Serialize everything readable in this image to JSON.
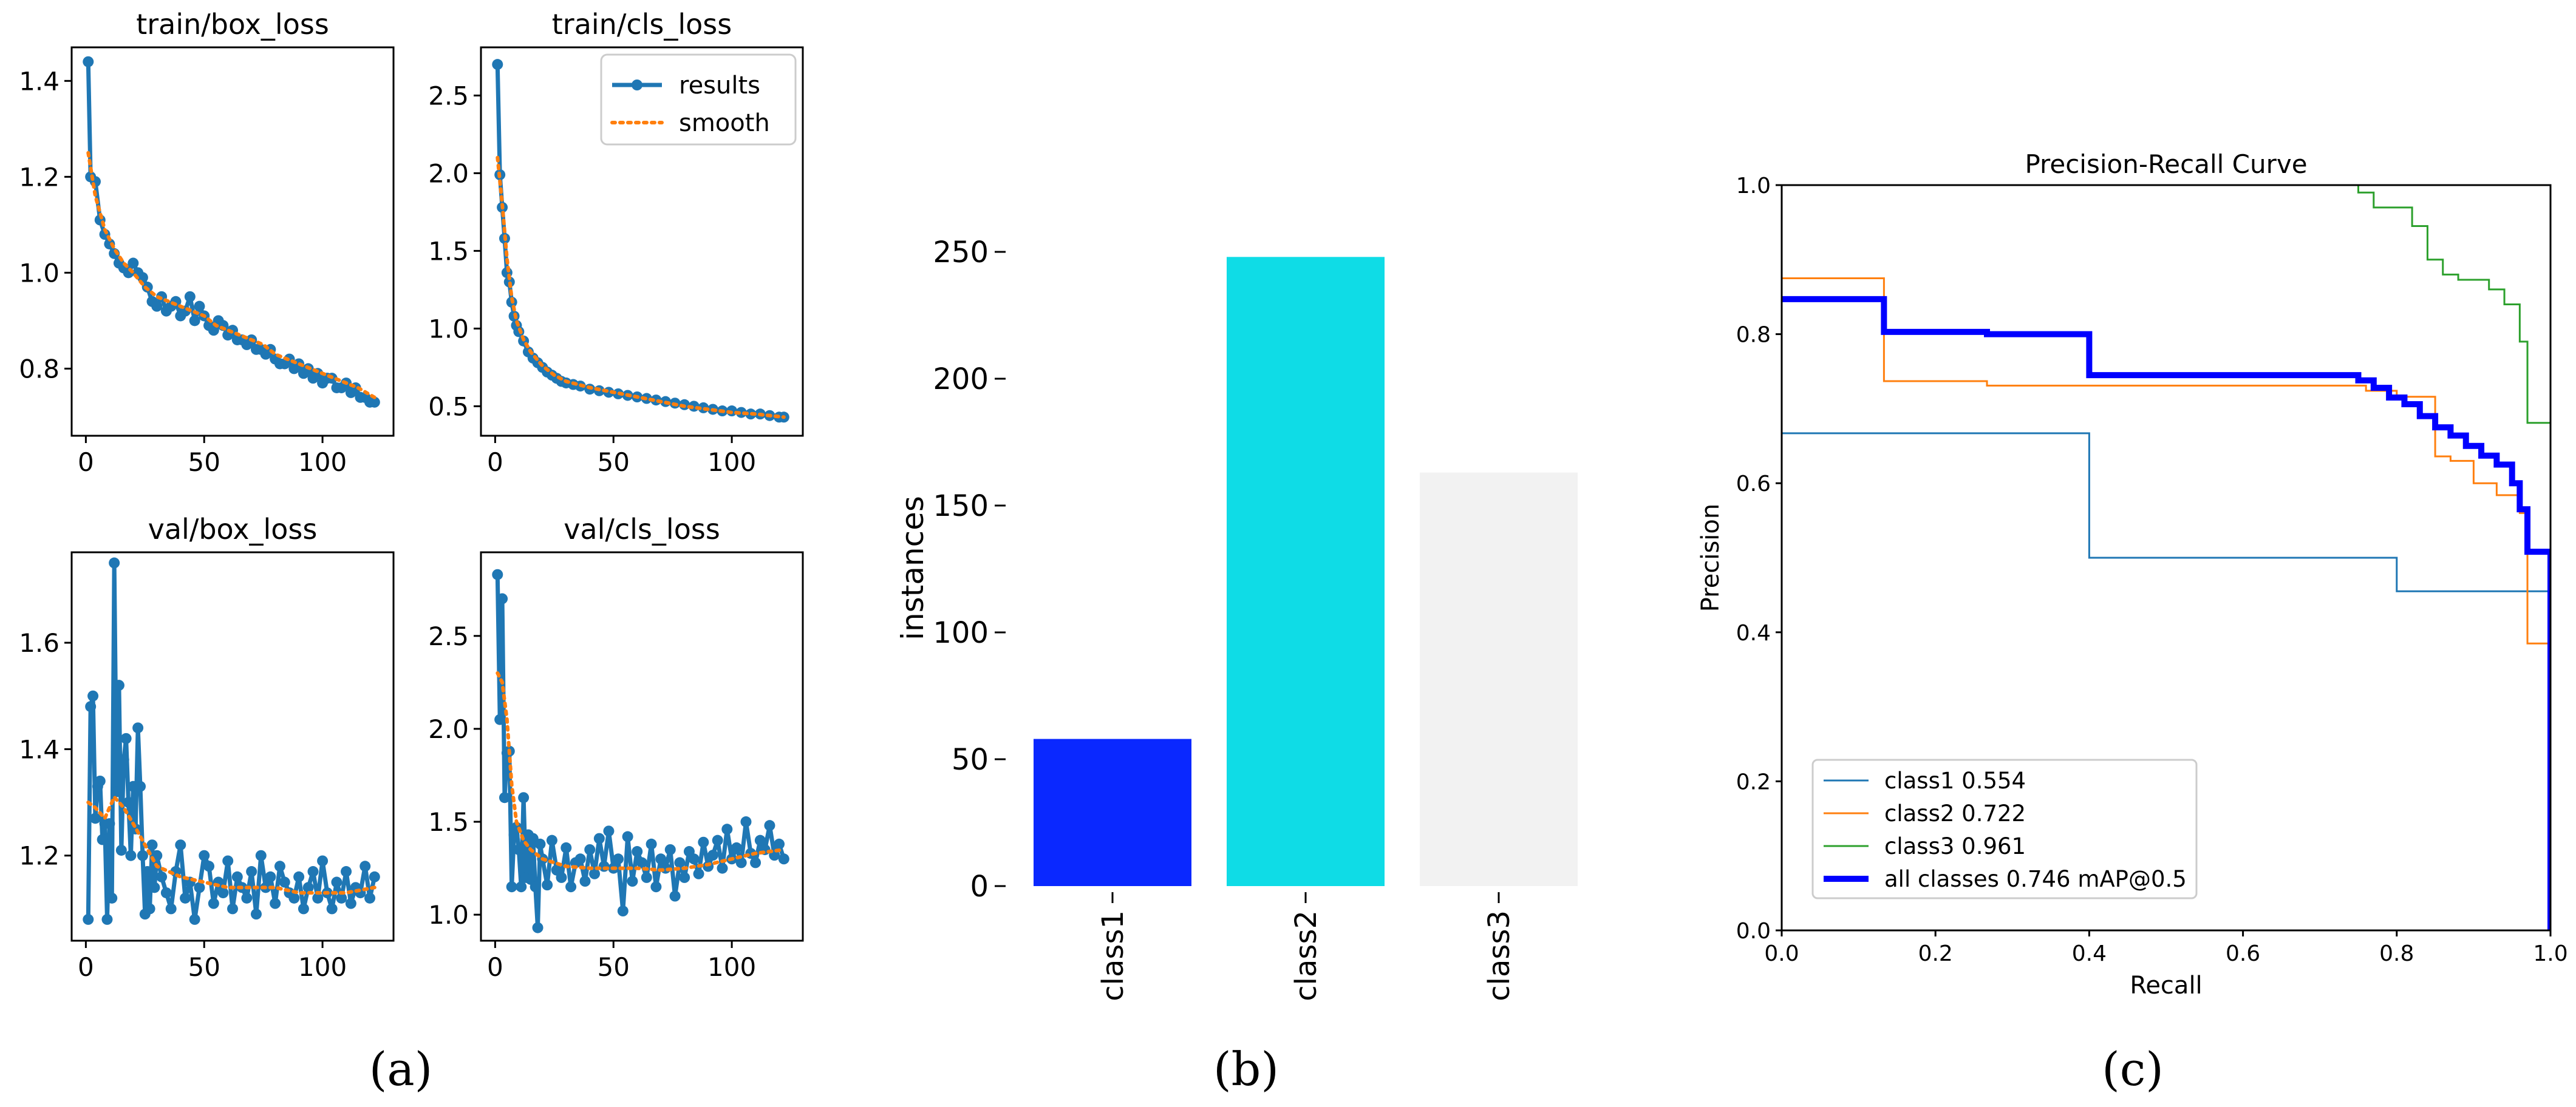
{
  "colors": {
    "results": "#1f77b4",
    "smooth": "#ff7f0e",
    "class1_pr": "#1f77b4",
    "class2_pr": "#ff7f0e",
    "class3_pr": "#2ca02c",
    "all_pr": "#0000ff",
    "bar_class1": "#0a28ff",
    "bar_class2": "#0fdce6",
    "bar_class3": "#f2f2f2"
  },
  "panel_labels": {
    "a": "(a)",
    "b": "(b)",
    "c": "(c)"
  },
  "chart_data": [
    {
      "id": "train_box",
      "type": "line",
      "title": "train/box_loss",
      "xlim": [
        -6,
        130
      ],
      "ylim": [
        0.66,
        1.47
      ],
      "xticks": [
        0,
        50,
        100
      ],
      "yticks": [
        0.8,
        1.0,
        1.2,
        1.4
      ],
      "yfmt": 1,
      "legend": null,
      "series": [
        {
          "name": "results",
          "kind": "results",
          "x": [
            1,
            2,
            4,
            6,
            8,
            10,
            12,
            14,
            16,
            18,
            20,
            22,
            24,
            26,
            28,
            30,
            32,
            34,
            36,
            38,
            40,
            42,
            44,
            46,
            48,
            50,
            52,
            54,
            56,
            58,
            60,
            62,
            64,
            66,
            68,
            70,
            72,
            74,
            76,
            78,
            80,
            82,
            84,
            86,
            88,
            90,
            92,
            94,
            96,
            98,
            100,
            102,
            104,
            106,
            108,
            110,
            112,
            114,
            116,
            118,
            120,
            122
          ],
          "y": [
            1.44,
            1.2,
            1.19,
            1.11,
            1.08,
            1.06,
            1.04,
            1.02,
            1.01,
            1.0,
            1.02,
            1.0,
            0.99,
            0.97,
            0.94,
            0.93,
            0.95,
            0.92,
            0.93,
            0.94,
            0.91,
            0.92,
            0.95,
            0.9,
            0.93,
            0.91,
            0.89,
            0.88,
            0.9,
            0.89,
            0.87,
            0.88,
            0.86,
            0.86,
            0.85,
            0.86,
            0.84,
            0.84,
            0.83,
            0.84,
            0.82,
            0.81,
            0.81,
            0.82,
            0.8,
            0.81,
            0.79,
            0.8,
            0.78,
            0.79,
            0.77,
            0.78,
            0.78,
            0.76,
            0.76,
            0.77,
            0.75,
            0.76,
            0.74,
            0.74,
            0.73,
            0.73
          ]
        },
        {
          "name": "smooth",
          "kind": "smooth",
          "x": [
            1,
            4,
            8,
            12,
            16,
            20,
            25,
            30,
            35,
            40,
            45,
            50,
            55,
            60,
            65,
            70,
            75,
            80,
            85,
            90,
            95,
            100,
            105,
            110,
            115,
            122
          ],
          "y": [
            1.25,
            1.16,
            1.09,
            1.05,
            1.02,
            1.0,
            0.97,
            0.95,
            0.94,
            0.93,
            0.92,
            0.91,
            0.89,
            0.88,
            0.87,
            0.86,
            0.85,
            0.83,
            0.82,
            0.81,
            0.8,
            0.79,
            0.78,
            0.77,
            0.76,
            0.74
          ]
        }
      ]
    },
    {
      "id": "train_cls",
      "type": "line",
      "title": "train/cls_loss",
      "xlim": [
        -6,
        130
      ],
      "ylim": [
        0.31,
        2.81
      ],
      "xticks": [
        0,
        50,
        100
      ],
      "yticks": [
        0.5,
        1.0,
        1.5,
        2.0,
        2.5
      ],
      "yfmt": 1,
      "legend": {
        "results_label": "results",
        "smooth_label": "smooth",
        "position": "upper right"
      },
      "series": [
        {
          "name": "results",
          "kind": "results",
          "x": [
            1,
            2,
            3,
            4,
            5,
            6,
            7,
            8,
            9,
            10,
            12,
            14,
            16,
            18,
            20,
            22,
            24,
            26,
            28,
            30,
            33,
            36,
            40,
            44,
            48,
            52,
            56,
            60,
            64,
            68,
            72,
            76,
            80,
            84,
            88,
            92,
            96,
            100,
            104,
            108,
            112,
            116,
            120,
            122
          ],
          "y": [
            2.7,
            1.99,
            1.78,
            1.58,
            1.36,
            1.3,
            1.17,
            1.08,
            1.02,
            0.98,
            0.92,
            0.85,
            0.81,
            0.78,
            0.75,
            0.72,
            0.7,
            0.68,
            0.66,
            0.65,
            0.64,
            0.63,
            0.61,
            0.6,
            0.59,
            0.58,
            0.57,
            0.56,
            0.55,
            0.54,
            0.53,
            0.52,
            0.51,
            0.5,
            0.49,
            0.48,
            0.47,
            0.47,
            0.46,
            0.45,
            0.45,
            0.44,
            0.43,
            0.43
          ]
        },
        {
          "name": "smooth",
          "kind": "smooth",
          "x": [
            1,
            3,
            5,
            7,
            9,
            12,
            15,
            20,
            25,
            30,
            40,
            50,
            60,
            70,
            80,
            90,
            100,
            110,
            122
          ],
          "y": [
            2.1,
            1.8,
            1.45,
            1.2,
            1.05,
            0.93,
            0.85,
            0.76,
            0.7,
            0.66,
            0.62,
            0.59,
            0.56,
            0.53,
            0.5,
            0.48,
            0.46,
            0.45,
            0.43
          ]
        }
      ]
    },
    {
      "id": "val_box",
      "type": "line",
      "title": "val/box_loss",
      "xlim": [
        -6,
        130
      ],
      "ylim": [
        1.04,
        1.77
      ],
      "xticks": [
        0,
        50,
        100
      ],
      "yticks": [
        1.2,
        1.4,
        1.6
      ],
      "yfmt": 1,
      "legend": null,
      "series": [
        {
          "name": "results",
          "kind": "results",
          "x": [
            1,
            2,
            3,
            4,
            5,
            6,
            7,
            8,
            9,
            10,
            11,
            12,
            13,
            14,
            15,
            16,
            17,
            18,
            19,
            20,
            21,
            22,
            23,
            24,
            25,
            26,
            27,
            28,
            29,
            30,
            32,
            34,
            36,
            38,
            40,
            42,
            44,
            46,
            48,
            50,
            52,
            54,
            56,
            58,
            60,
            62,
            64,
            66,
            68,
            70,
            72,
            74,
            76,
            78,
            80,
            82,
            84,
            86,
            88,
            90,
            92,
            94,
            96,
            98,
            100,
            102,
            104,
            106,
            108,
            110,
            112,
            114,
            116,
            118,
            120,
            122
          ],
          "y": [
            1.08,
            1.48,
            1.5,
            1.27,
            1.33,
            1.34,
            1.23,
            1.26,
            1.08,
            1.26,
            1.12,
            1.75,
            1.32,
            1.52,
            1.21,
            1.38,
            1.42,
            1.3,
            1.2,
            1.33,
            1.25,
            1.44,
            1.33,
            1.2,
            1.09,
            1.17,
            1.1,
            1.22,
            1.14,
            1.2,
            1.16,
            1.13,
            1.1,
            1.17,
            1.22,
            1.12,
            1.15,
            1.08,
            1.14,
            1.2,
            1.18,
            1.11,
            1.15,
            1.13,
            1.19,
            1.1,
            1.16,
            1.14,
            1.12,
            1.17,
            1.09,
            1.2,
            1.14,
            1.16,
            1.11,
            1.18,
            1.15,
            1.13,
            1.12,
            1.16,
            1.1,
            1.14,
            1.17,
            1.12,
            1.19,
            1.13,
            1.1,
            1.15,
            1.12,
            1.17,
            1.11,
            1.14,
            1.13,
            1.18,
            1.12,
            1.16
          ]
        },
        {
          "name": "smooth",
          "kind": "smooth",
          "x": [
            1,
            4,
            8,
            12,
            16,
            20,
            25,
            30,
            40,
            50,
            60,
            70,
            80,
            90,
            100,
            110,
            122
          ],
          "y": [
            1.3,
            1.29,
            1.27,
            1.31,
            1.29,
            1.26,
            1.22,
            1.18,
            1.16,
            1.15,
            1.14,
            1.14,
            1.14,
            1.13,
            1.13,
            1.13,
            1.14
          ]
        }
      ]
    },
    {
      "id": "val_cls",
      "type": "line",
      "title": "val/cls_loss",
      "xlim": [
        -6,
        130
      ],
      "ylim": [
        0.86,
        2.95
      ],
      "xticks": [
        0,
        50,
        100
      ],
      "yticks": [
        1.0,
        1.5,
        2.0,
        2.5
      ],
      "yfmt": 1,
      "legend": null,
      "series": [
        {
          "name": "results",
          "kind": "results",
          "x": [
            1,
            2,
            3,
            4,
            5,
            6,
            7,
            8,
            9,
            10,
            11,
            12,
            13,
            14,
            15,
            16,
            17,
            18,
            19,
            20,
            22,
            24,
            26,
            28,
            30,
            32,
            34,
            36,
            38,
            40,
            42,
            44,
            46,
            48,
            50,
            52,
            54,
            56,
            58,
            60,
            62,
            64,
            66,
            68,
            70,
            72,
            74,
            76,
            78,
            80,
            82,
            84,
            86,
            88,
            90,
            92,
            94,
            96,
            98,
            100,
            102,
            104,
            106,
            108,
            110,
            112,
            114,
            116,
            118,
            120,
            122
          ],
          "y": [
            2.83,
            2.05,
            2.7,
            1.63,
            1.87,
            1.88,
            1.15,
            1.43,
            1.47,
            1.35,
            1.15,
            1.63,
            1.2,
            1.43,
            1.19,
            1.41,
            1.15,
            0.93,
            1.38,
            1.3,
            1.16,
            1.4,
            1.24,
            1.2,
            1.36,
            1.15,
            1.28,
            1.3,
            1.18,
            1.35,
            1.22,
            1.41,
            1.26,
            1.45,
            1.25,
            1.3,
            1.02,
            1.42,
            1.18,
            1.34,
            1.28,
            1.2,
            1.38,
            1.15,
            1.3,
            1.25,
            1.35,
            1.1,
            1.28,
            1.2,
            1.34,
            1.3,
            1.22,
            1.39,
            1.26,
            1.32,
            1.4,
            1.25,
            1.46,
            1.3,
            1.36,
            1.28,
            1.5,
            1.33,
            1.28,
            1.4,
            1.35,
            1.48,
            1.32,
            1.38,
            1.3
          ]
        },
        {
          "name": "smooth",
          "kind": "smooth",
          "x": [
            1,
            3,
            5,
            7,
            9,
            12,
            15,
            20,
            25,
            30,
            40,
            50,
            60,
            70,
            80,
            90,
            100,
            110,
            122
          ],
          "y": [
            2.3,
            2.25,
            2.05,
            1.7,
            1.5,
            1.4,
            1.35,
            1.3,
            1.28,
            1.26,
            1.25,
            1.25,
            1.25,
            1.24,
            1.25,
            1.27,
            1.3,
            1.33,
            1.35
          ]
        }
      ]
    },
    {
      "id": "instances",
      "type": "bar",
      "title": "",
      "ylabel": "instances",
      "categories": [
        "class1",
        "class2",
        "class3"
      ],
      "values": [
        58,
        248,
        163
      ],
      "ylim": [
        0,
        260
      ],
      "yticks": [
        0,
        50,
        100,
        150,
        200,
        250
      ]
    },
    {
      "id": "pr_curve",
      "type": "line",
      "title": "Precision-Recall Curve",
      "xlabel": "Recall",
      "ylabel": "Precision",
      "xlim": [
        0,
        1
      ],
      "ylim": [
        0,
        1
      ],
      "xticks": [
        0.0,
        0.2,
        0.4,
        0.6,
        0.8,
        1.0
      ],
      "yticks": [
        0.0,
        0.2,
        0.4,
        0.6,
        0.8,
        1.0
      ],
      "legend_position": "lower left",
      "series": [
        {
          "name": "class1 0.554",
          "color_key": "class1_pr",
          "width": 3,
          "x": [
            0,
            0.4,
            0.4,
            0.8,
            0.8,
            1.0,
            1.0
          ],
          "y": [
            0.667,
            0.667,
            0.5,
            0.5,
            0.455,
            0.455,
            0
          ]
        },
        {
          "name": "class2 0.722",
          "color_key": "class2_pr",
          "width": 3,
          "x": [
            0,
            0.133,
            0.133,
            0.267,
            0.267,
            0.76,
            0.76,
            0.8,
            0.8,
            0.85,
            0.85,
            0.87,
            0.87,
            0.9,
            0.9,
            0.93,
            0.93,
            0.96,
            0.96,
            0.97,
            0.97,
            1.0,
            1.0
          ],
          "y": [
            0.875,
            0.875,
            0.737,
            0.737,
            0.731,
            0.731,
            0.724,
            0.724,
            0.716,
            0.716,
            0.636,
            0.636,
            0.63,
            0.63,
            0.6,
            0.6,
            0.584,
            0.584,
            0.56,
            0.56,
            0.385,
            0.385,
            0
          ]
        },
        {
          "name": "class3 0.961",
          "color_key": "class3_pr",
          "width": 3,
          "x": [
            0.75,
            0.75,
            0.77,
            0.77,
            0.82,
            0.82,
            0.84,
            0.84,
            0.86,
            0.86,
            0.88,
            0.88,
            0.92,
            0.92,
            0.94,
            0.94,
            0.96,
            0.96,
            0.97,
            0.97,
            1.0,
            1.0
          ],
          "y": [
            1.0,
            0.99,
            0.99,
            0.97,
            0.97,
            0.945,
            0.945,
            0.9,
            0.9,
            0.88,
            0.88,
            0.873,
            0.873,
            0.86,
            0.86,
            0.84,
            0.84,
            0.79,
            0.79,
            0.681,
            0.681,
            0
          ]
        },
        {
          "name": "all classes 0.746 mAP@0.5",
          "color_key": "all_pr",
          "width": 10,
          "x": [
            0,
            0.133,
            0.133,
            0.267,
            0.267,
            0.4,
            0.4,
            0.75,
            0.75,
            0.77,
            0.77,
            0.79,
            0.79,
            0.81,
            0.81,
            0.83,
            0.83,
            0.85,
            0.85,
            0.87,
            0.87,
            0.89,
            0.89,
            0.91,
            0.91,
            0.93,
            0.93,
            0.95,
            0.95,
            0.96,
            0.96,
            0.97,
            0.97,
            1.0,
            1.0
          ],
          "y": [
            0.847,
            0.847,
            0.803,
            0.803,
            0.8,
            0.8,
            0.745,
            0.745,
            0.738,
            0.738,
            0.728,
            0.728,
            0.715,
            0.715,
            0.706,
            0.706,
            0.69,
            0.69,
            0.675,
            0.675,
            0.664,
            0.664,
            0.65,
            0.65,
            0.637,
            0.637,
            0.625,
            0.625,
            0.6,
            0.6,
            0.565,
            0.565,
            0.508,
            0.508,
            0
          ]
        }
      ]
    }
  ]
}
